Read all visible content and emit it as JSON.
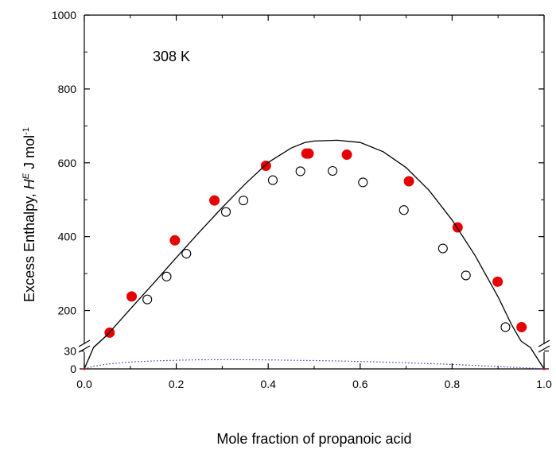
{
  "chart_data": {
    "type": "scatter",
    "title": "",
    "annotation": "308 K",
    "xlabel": "Mole fraction of propanoic acid",
    "ylabel": {
      "prefix": "Excess Enthalpy, ",
      "symbol": "H",
      "superscript": "E",
      "unit": " J mol",
      "unit_superscript": "-1"
    },
    "xlim": [
      0,
      1
    ],
    "x_ticks": [
      "0.0",
      "0.2",
      "0.4",
      "0.6",
      "0.8",
      "1.0"
    ],
    "x_tick_values": [
      0,
      0.2,
      0.4,
      0.6,
      0.8,
      1.0
    ],
    "axis_break": true,
    "y_lower": {
      "range": [
        0,
        40
      ],
      "tick_labels": [
        "0",
        "30"
      ],
      "tick_values": [
        0,
        30
      ]
    },
    "y_upper": {
      "range": [
        100,
        1000
      ],
      "tick_labels": [
        "200",
        "400",
        "600",
        "800",
        "1000"
      ],
      "tick_values": [
        200,
        400,
        600,
        800,
        1000
      ]
    },
    "grid": false,
    "legend": "none",
    "series": [
      {
        "marker": "filled-circle",
        "color": "#e60000",
        "x": [
          0.055,
          0.103,
          0.197,
          0.283,
          0.395,
          0.483,
          0.488,
          0.571,
          0.706,
          0.812,
          0.899,
          0.951
        ],
        "y": [
          140,
          238,
          390,
          498,
          592,
          625,
          625,
          622,
          550,
          425,
          278,
          155
        ]
      },
      {
        "marker": "open-circle",
        "color": "#000000",
        "x": [
          0.137,
          0.179,
          0.222,
          0.308,
          0.346,
          0.41,
          0.47,
          0.54,
          0.606,
          0.695,
          0.78,
          0.83,
          0.916
        ],
        "y": [
          230,
          292,
          354,
          467,
          498,
          553,
          577,
          578,
          547,
          472,
          368,
          295,
          155
        ]
      },
      {
        "style": "solid-line",
        "color": "#000000",
        "x": [
          0.0,
          0.01,
          0.02,
          0.05,
          0.1,
          0.15,
          0.2,
          0.25,
          0.3,
          0.35,
          0.4,
          0.45,
          0.48,
          0.5,
          0.55,
          0.6,
          0.65,
          0.7,
          0.75,
          0.8,
          0.85,
          0.9,
          0.93,
          0.95,
          0.97,
          0.99,
          1.0
        ],
        "y": [
          0,
          20,
          100,
          134,
          204,
          273,
          343,
          412,
          479,
          543,
          601,
          640,
          655,
          659,
          661,
          655,
          630,
          587,
          525,
          445,
          349,
          237,
          160,
          117,
          40,
          10,
          0
        ]
      },
      {
        "style": "dotted-line",
        "color": "#3333cc",
        "x": [
          0.0,
          0.02,
          0.05,
          0.1,
          0.15,
          0.2,
          0.25,
          0.3,
          0.35,
          0.4,
          0.45,
          0.5,
          0.55,
          0.6,
          0.65,
          0.7,
          0.75,
          0.8,
          0.85,
          0.9,
          0.95,
          0.98,
          1.0
        ],
        "y": [
          0,
          4.5,
          8,
          11.5,
          13.3,
          14.6,
          15.3,
          15.5,
          15.4,
          15.1,
          14.6,
          14.0,
          13.3,
          12.4,
          11.4,
          10.2,
          8.9,
          7.4,
          5.7,
          4.0,
          2.2,
          1.0,
          0
        ]
      }
    ]
  }
}
